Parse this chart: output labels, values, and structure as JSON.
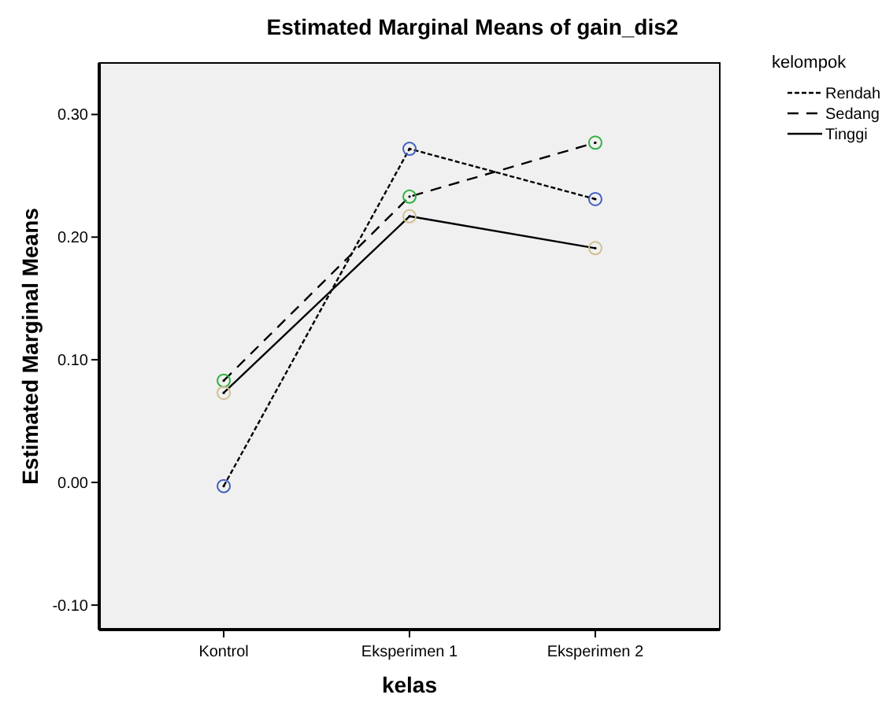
{
  "chart_data": {
    "type": "line",
    "title": "Estimated Marginal Means of gain_dis2",
    "xlabel": "kelas",
    "ylabel": "Estimated Marginal Means",
    "legend_title": "kelompok",
    "categories": [
      "Kontrol",
      "Eksperimen 1",
      "Eksperimen 2"
    ],
    "series": [
      {
        "name": "Rendah",
        "color": "#4060c0",
        "line_style": "dotted",
        "values": [
          -0.003,
          0.272,
          0.231
        ]
      },
      {
        "name": "Sedang",
        "color": "#30b040",
        "line_style": "dashed",
        "values": [
          0.083,
          0.233,
          0.277
        ]
      },
      {
        "name": "Tinggi",
        "color": "#d0c090",
        "line_style": "solid",
        "values": [
          0.073,
          0.217,
          0.191
        ]
      }
    ],
    "ylim": [
      -0.12,
      0.342
    ],
    "yticks": [
      {
        "value": -0.1,
        "label": "-0.10"
      },
      {
        "value": 0,
        "label": "0.00"
      },
      {
        "value": 0.1,
        "label": "0.10"
      },
      {
        "value": 0.2,
        "label": "0.20"
      },
      {
        "value": 0.3,
        "label": "0.30"
      }
    ],
    "marker": "circle",
    "legend": "right",
    "grid": false
  }
}
